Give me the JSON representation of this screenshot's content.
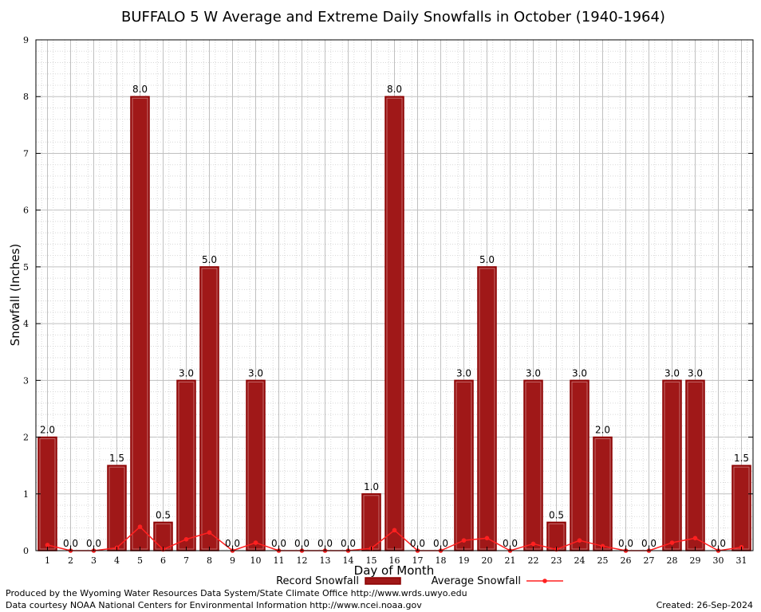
{
  "colors": {
    "bar_fill": "#a01818",
    "bar_stroke": "#8b0000",
    "avg_line": "#ff2020",
    "grid_major": "#c0c0c0",
    "grid_minor": "#d8d8d8"
  },
  "legend": {
    "record_label": "Record Snowfall",
    "average_label": "Average Snowfall"
  },
  "footer": {
    "producer": "Produced by the Wyoming Water Resources Data System/State Climate Office http://www.wrds.uwyo.edu",
    "courtesy": "Data courtesy NOAA National Centers for Environmental Information http://www.ncei.noaa.gov",
    "created": "Created:  26-Sep-2024"
  },
  "chart_data": {
    "type": "bar",
    "title": "BUFFALO 5 W Average and Extreme Daily Snowfalls in October (1940-1964)",
    "xlabel": "Day of Month",
    "ylabel": "Snowfall (Inches)",
    "ylim": [
      0,
      9
    ],
    "yticks": [
      0,
      1,
      2,
      3,
      4,
      5,
      6,
      7,
      8,
      9
    ],
    "grid": true,
    "legend_position": "bottom",
    "categories": [
      1,
      2,
      3,
      4,
      5,
      6,
      7,
      8,
      9,
      10,
      11,
      12,
      13,
      14,
      15,
      16,
      17,
      18,
      19,
      20,
      21,
      22,
      23,
      24,
      25,
      26,
      27,
      28,
      29,
      30,
      31
    ],
    "series": [
      {
        "name": "Record Snowfall",
        "type": "bar",
        "values": [
          2.0,
          0.0,
          0.0,
          1.5,
          8.0,
          0.5,
          3.0,
          5.0,
          0.0,
          3.0,
          0.0,
          0.0,
          0.0,
          0.0,
          1.0,
          8.0,
          0.0,
          0.0,
          3.0,
          5.0,
          0.0,
          3.0,
          0.5,
          3.0,
          2.0,
          0.0,
          0.0,
          3.0,
          3.0,
          0.0,
          1.5
        ],
        "labels": [
          "2.0",
          "0.0",
          "0.0",
          "1.5",
          "8.0",
          "0.5",
          "3.0",
          "5.0",
          "0.0",
          "3.0",
          "0.0",
          "0.0",
          "0.0",
          "0.0",
          "1.0",
          "8.0",
          "0.0",
          "0.0",
          "3.0",
          "5.0",
          "0.0",
          "3.0",
          "0.5",
          "3.0",
          "2.0",
          "0.0",
          "0.0",
          "3.0",
          "3.0",
          "0.0",
          "1.5"
        ]
      },
      {
        "name": "Average Snowfall",
        "type": "line",
        "values": [
          0.1,
          0.0,
          0.0,
          0.05,
          0.42,
          0.02,
          0.2,
          0.32,
          0.0,
          0.14,
          0.0,
          0.0,
          0.0,
          0.0,
          0.04,
          0.36,
          0.0,
          0.0,
          0.18,
          0.22,
          0.0,
          0.12,
          0.02,
          0.18,
          0.08,
          0.0,
          0.0,
          0.14,
          0.22,
          0.0,
          0.06
        ]
      }
    ]
  }
}
